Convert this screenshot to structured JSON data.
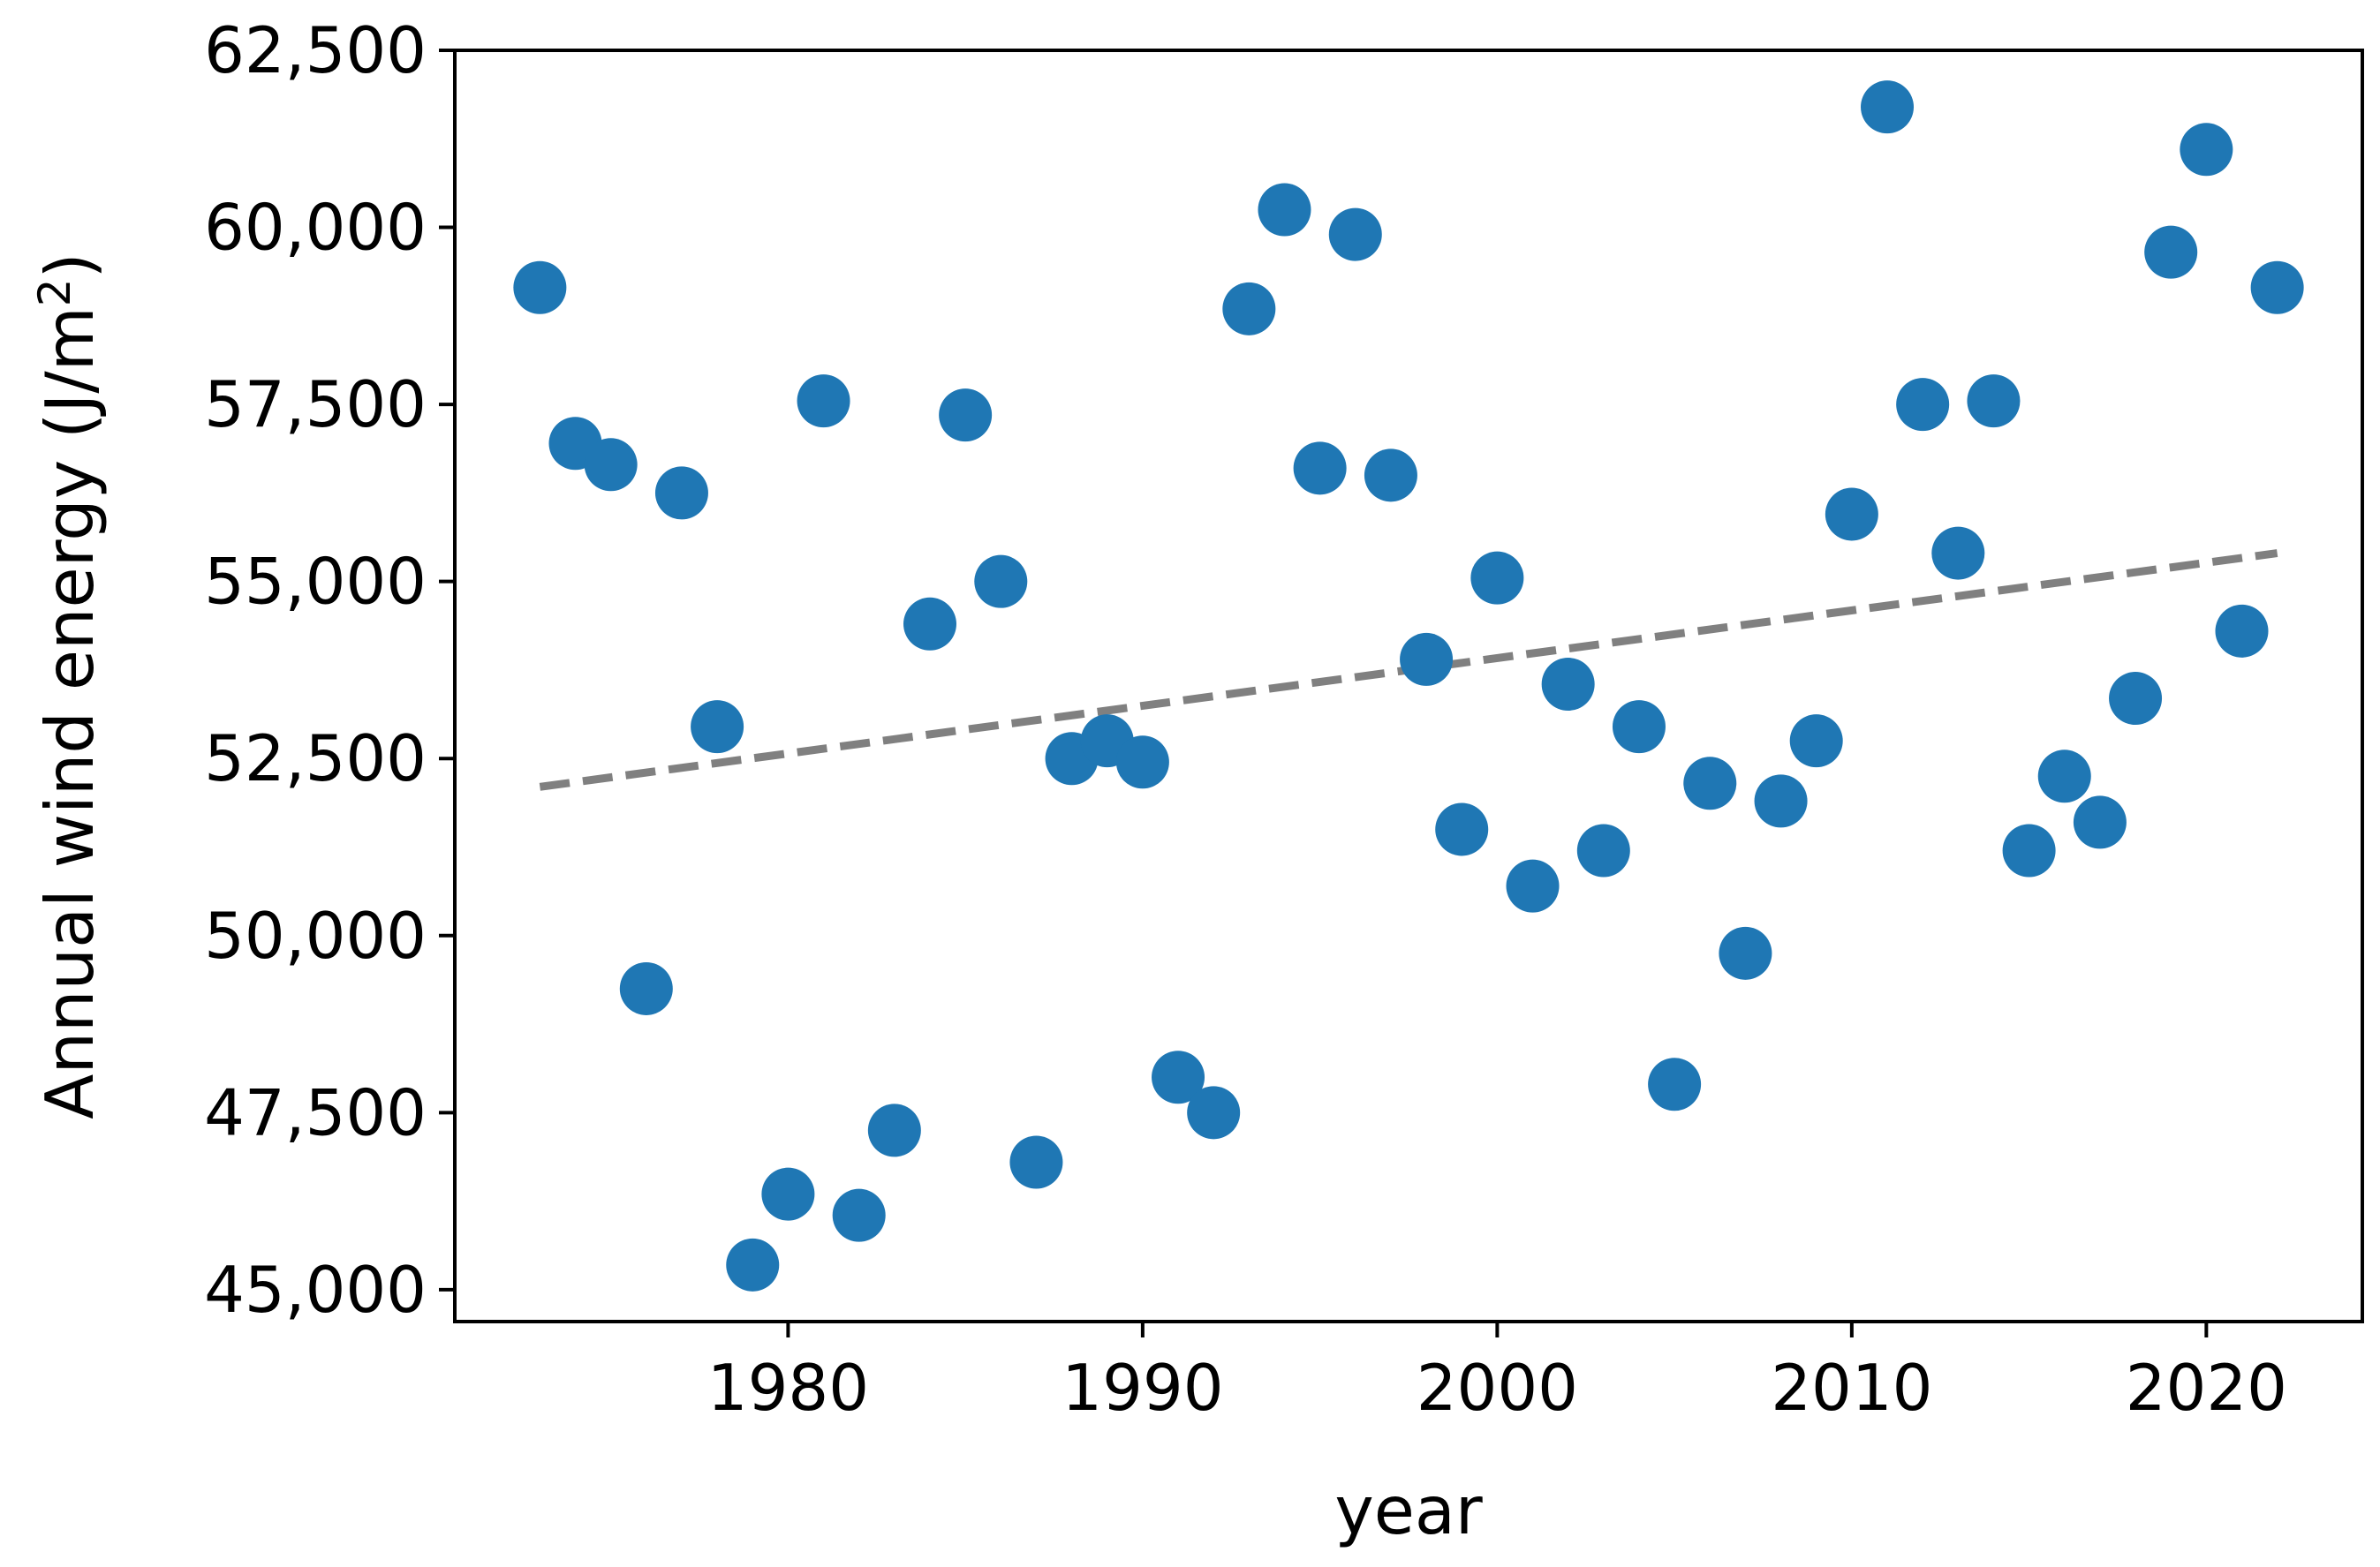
{
  "colors": {
    "point": "#1f77b4",
    "trend": "#808080",
    "axes": "#000000",
    "background": "#ffffff"
  },
  "chart_data": {
    "type": "scatter",
    "title": "",
    "xlabel": "year",
    "ylabel": "Annual wind energy (J/m²)",
    "ylabel_parts": {
      "base": "Annual wind energy (J/m",
      "sup": "2",
      "end": ")"
    },
    "xlim": [
      1970.6,
      2024.4
    ],
    "ylim": [
      44550,
      62500
    ],
    "xticks": [
      1980,
      1990,
      2000,
      2010,
      2020
    ],
    "xtick_labels": [
      "1980",
      "1990",
      "2000",
      "2010",
      "2020"
    ],
    "yticks": [
      45000,
      47500,
      50000,
      52500,
      55000,
      57500,
      60000,
      62500
    ],
    "ytick_labels": [
      "45,000",
      "47,500",
      "50,000",
      "52,500",
      "55,000",
      "57,500",
      "60,000",
      "62,500"
    ],
    "grid": false,
    "legend": "none",
    "series": [
      {
        "style": "markers",
        "x": [
          1973,
          1974,
          1975,
          1976,
          1977,
          1978,
          1979,
          1980,
          1981,
          1982,
          1983,
          1984,
          1985,
          1986,
          1987,
          1988,
          1989,
          1990,
          1991,
          1992,
          1993,
          1994,
          1995,
          1996,
          1997,
          1998,
          1999,
          2000,
          2001,
          2002,
          2003,
          2004,
          2005,
          2006,
          2007,
          2008,
          2009,
          2010,
          2011,
          2012,
          2013,
          2014,
          2015,
          2016,
          2017,
          2018,
          2019,
          2020,
          2021,
          2022
        ],
        "y": [
          59150,
          56950,
          56650,
          49250,
          56250,
          52950,
          45350,
          46350,
          57550,
          46050,
          47250,
          54400,
          57350,
          55000,
          46800,
          52500,
          52750,
          52450,
          48000,
          47500,
          58850,
          60250,
          56600,
          59900,
          56500,
          53900,
          51500,
          55050,
          50700,
          53550,
          51200,
          52950,
          47900,
          52150,
          49750,
          51900,
          52750,
          55950,
          61700,
          57500,
          55400,
          57550,
          51200,
          52250,
          51600,
          53350,
          59650,
          61100,
          54300,
          59150
        ]
      },
      {
        "style": "dashed-trend",
        "x": [
          1973,
          2022
        ],
        "y": [
          52100,
          55400
        ]
      }
    ]
  }
}
